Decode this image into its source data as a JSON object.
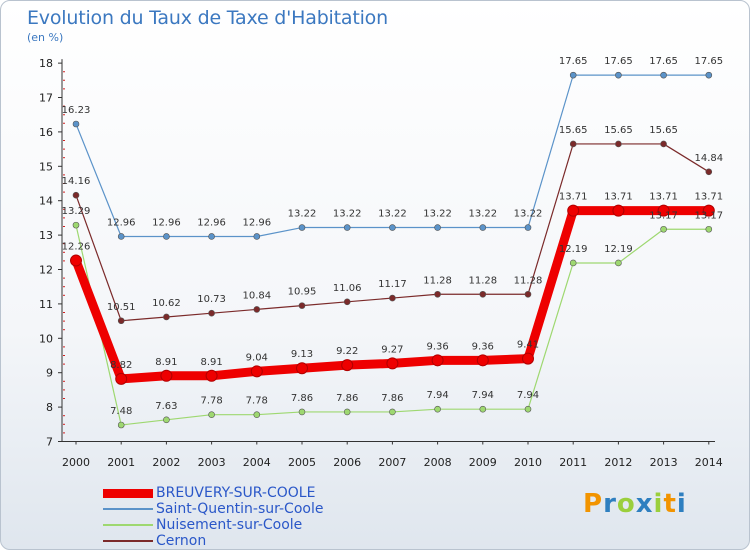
{
  "chart_data": {
    "type": "line",
    "title": "Evolution du Taux de Taxe d'Habitation",
    "ylabel": "(en %)",
    "categories": [
      "2000",
      "2001",
      "2002",
      "2003",
      "2004",
      "2005",
      "2006",
      "2007",
      "2008",
      "2009",
      "2010",
      "2011",
      "2012",
      "2013",
      "2014"
    ],
    "ylim": [
      7,
      18
    ],
    "yticks": [
      7,
      8,
      9,
      10,
      11,
      12,
      13,
      14,
      15,
      16,
      17,
      18
    ],
    "series": [
      {
        "name": "BREUVERY-SUR-COOLE",
        "color": "#ee0000",
        "width": 9,
        "values": [
          12.26,
          8.82,
          8.91,
          8.91,
          9.04,
          9.13,
          9.22,
          9.27,
          9.36,
          9.36,
          9.41,
          13.71,
          13.71,
          13.71,
          13.71
        ],
        "labels": [
          "12.26",
          "8.82",
          "8.91",
          "8.91",
          "9.04",
          "9.13",
          "9.22",
          "9.27",
          "9.36",
          "9.36",
          "9.41",
          "13.71",
          "13.71",
          "13.71",
          "13.71"
        ]
      },
      {
        "name": "Saint-Quentin-sur-Coole",
        "color": "#5b93c9",
        "width": 1.2,
        "values": [
          16.23,
          12.96,
          12.96,
          12.96,
          12.96,
          13.22,
          13.22,
          13.22,
          13.22,
          13.22,
          13.22,
          17.65,
          17.65,
          17.65,
          17.65
        ],
        "labels": [
          "16.23",
          "12.96",
          "12.96",
          "12.96",
          "12.96",
          "13.22",
          "13.22",
          "13.22",
          "13.22",
          "13.22",
          "13.22",
          "17.65",
          "17.65",
          "17.65",
          "17.65"
        ]
      },
      {
        "name": "Nuisement-sur-Coole",
        "color": "#9ed870",
        "width": 1.2,
        "values": [
          13.29,
          7.48,
          7.63,
          7.78,
          7.78,
          7.86,
          7.86,
          7.86,
          7.94,
          7.94,
          7.94,
          12.19,
          12.19,
          13.17,
          13.17
        ],
        "labels": [
          "13.29",
          "7.48",
          "7.63",
          "7.78",
          "7.78",
          "7.86",
          "7.86",
          "7.86",
          "7.94",
          "7.94",
          "7.94",
          "12.19",
          "12.19",
          "13.17",
          "13.17"
        ]
      },
      {
        "name": "Cernon",
        "color": "#7b2a2a",
        "width": 1.2,
        "values": [
          14.16,
          10.51,
          10.62,
          10.73,
          10.84,
          10.95,
          11.06,
          11.17,
          11.28,
          11.28,
          11.28,
          15.65,
          15.65,
          15.65,
          14.84
        ],
        "labels": [
          "14.16",
          "10.51",
          "10.62",
          "10.73",
          "10.84",
          "10.95",
          "11.06",
          "11.17",
          "11.28",
          "11.28",
          "11.28",
          "15.65",
          "15.65",
          "15.65",
          "14.84"
        ]
      }
    ],
    "grid": false,
    "legend": "bottom-left"
  },
  "logo": {
    "letters": [
      "P",
      "r",
      "o",
      "x",
      "i",
      "t",
      "i"
    ],
    "colors": [
      "#f29400",
      "#2e7fc0",
      "#9bcf3c",
      "#2e7fc0",
      "#9bcf3c",
      "#f29400",
      "#2e7fc0"
    ]
  }
}
